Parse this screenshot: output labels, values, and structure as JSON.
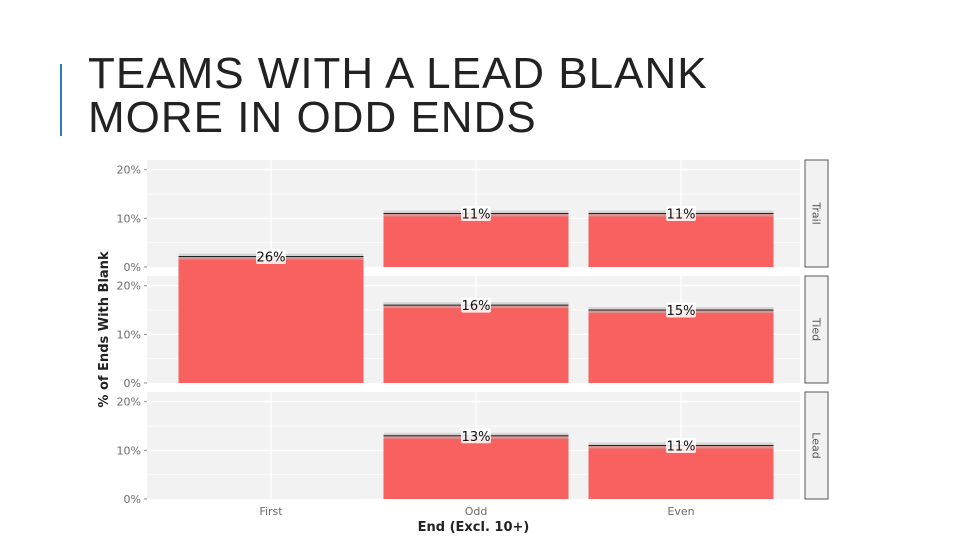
{
  "slide": {
    "title_lines": [
      "TEAMS WITH A LEAD BLANK",
      "MORE IN ODD ENDS"
    ],
    "accent_color": "#2f7ab9"
  },
  "chart_data": {
    "type": "bar",
    "facet_by": "row",
    "categories": [
      "First",
      "Odd",
      "Even"
    ],
    "xlabel": "End (Excl. 10+)",
    "ylabel": "% of Ends With Blank",
    "ylim": [
      0,
      22
    ],
    "yticks": [
      0,
      10,
      20
    ],
    "ytick_labels": [
      "0%",
      "10%",
      "20%"
    ],
    "bar_color": "#f8615f",
    "panel_background": "#f2f2f2",
    "grid": true,
    "panels": [
      {
        "strip": "Trail",
        "values": [
          null,
          11,
          11
        ],
        "labels": [
          "",
          "11%",
          "11%"
        ]
      },
      {
        "strip": "Tied",
        "values": [
          26,
          16,
          15
        ],
        "labels": [
          "26%",
          "16%",
          "15%"
        ]
      },
      {
        "strip": "Lead",
        "values": [
          null,
          13,
          11
        ],
        "labels": [
          "",
          "13%",
          "11%"
        ]
      }
    ]
  }
}
